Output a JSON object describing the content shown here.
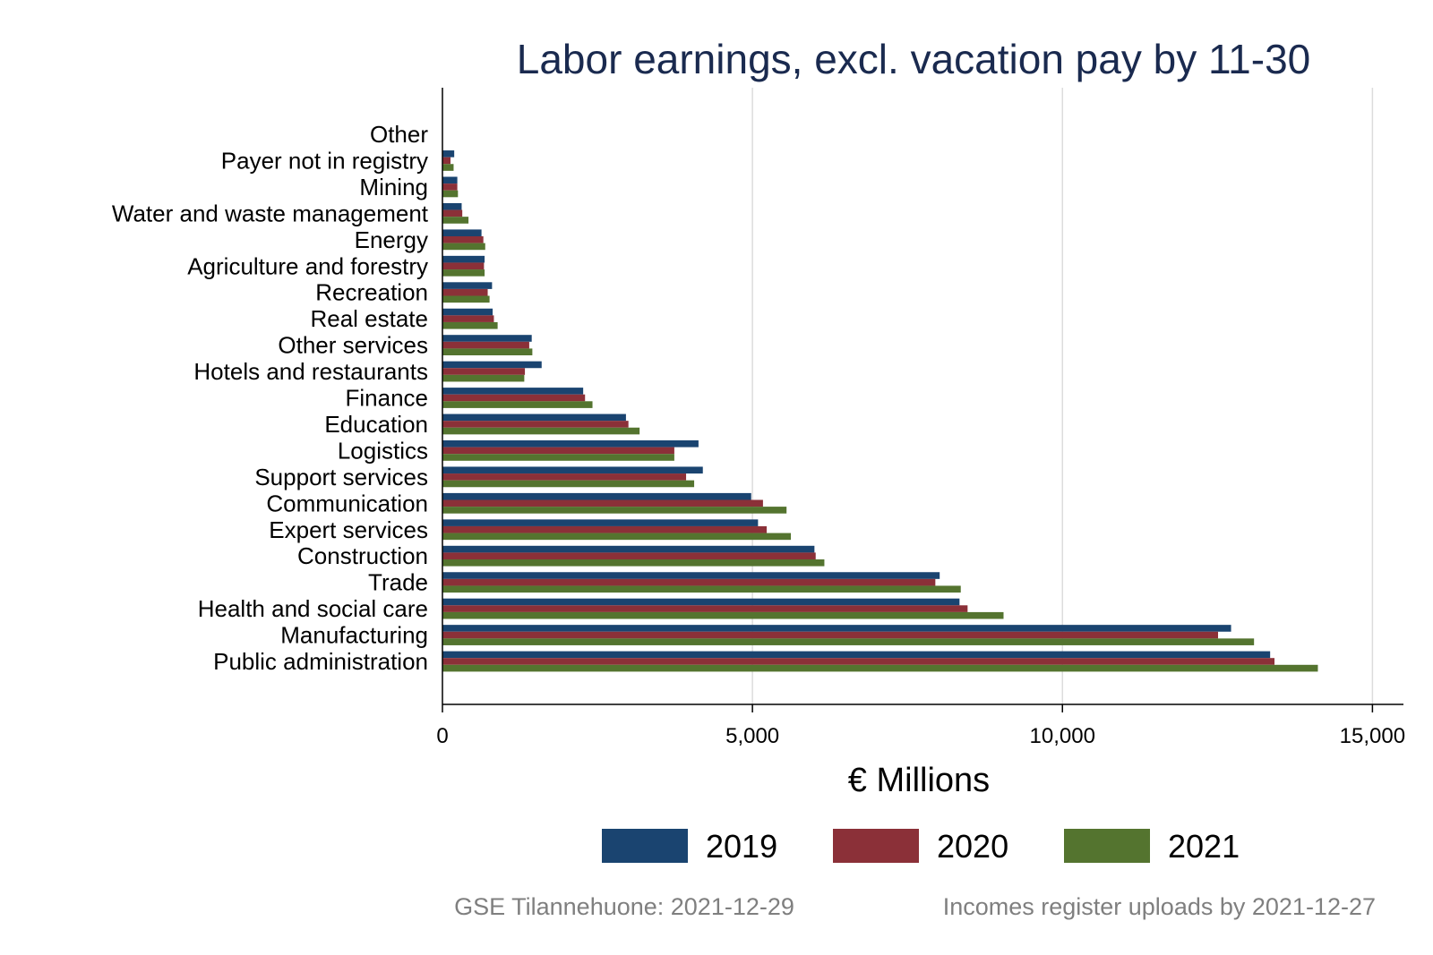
{
  "chart_data": {
    "type": "bar",
    "orientation": "horizontal",
    "title": "Labor earnings, excl. vacation pay by 11-30",
    "xlabel": "€ Millions",
    "xlim": [
      0,
      15500
    ],
    "xticks": [
      0,
      5000,
      10000,
      15000
    ],
    "xtick_labels": [
      "0",
      "5,000",
      "10,000",
      "15,000"
    ],
    "grid": true,
    "legend_position": "bottom",
    "categories": [
      "Other",
      "Payer not in registry",
      "Mining",
      "Water and waste management",
      "Energy",
      "Agriculture and forestry",
      "Recreation",
      "Real estate",
      "Other services",
      "Hotels and restaurants",
      "Finance",
      "Education",
      "Logistics",
      "Support services",
      "Communication",
      "Expert services",
      "Construction",
      "Trade",
      "Health and social care",
      "Manufacturing",
      "Public administration"
    ],
    "series": [
      {
        "name": "2019",
        "color": "#1a4470",
        "values": [
          5,
          190,
          240,
          310,
          630,
          680,
          800,
          810,
          1440,
          1600,
          2270,
          2960,
          4130,
          4200,
          4980,
          5090,
          6000,
          8020,
          8340,
          12720,
          13350
        ]
      },
      {
        "name": "2020",
        "color": "#8b3038",
        "values": [
          4,
          130,
          240,
          320,
          660,
          670,
          730,
          830,
          1400,
          1330,
          2300,
          3000,
          3740,
          3930,
          5170,
          5230,
          6020,
          7950,
          8470,
          12510,
          13420
        ]
      },
      {
        "name": "2021",
        "color": "#54742f",
        "values": [
          4,
          180,
          250,
          420,
          690,
          680,
          760,
          890,
          1450,
          1320,
          2420,
          3180,
          3740,
          4060,
          5550,
          5620,
          6160,
          8360,
          9050,
          13090,
          14120
        ]
      }
    ],
    "footnotes": {
      "left": "GSE Tilannehuone: 2021-12-29",
      "right": "Incomes register uploads by 2021-12-27"
    }
  }
}
